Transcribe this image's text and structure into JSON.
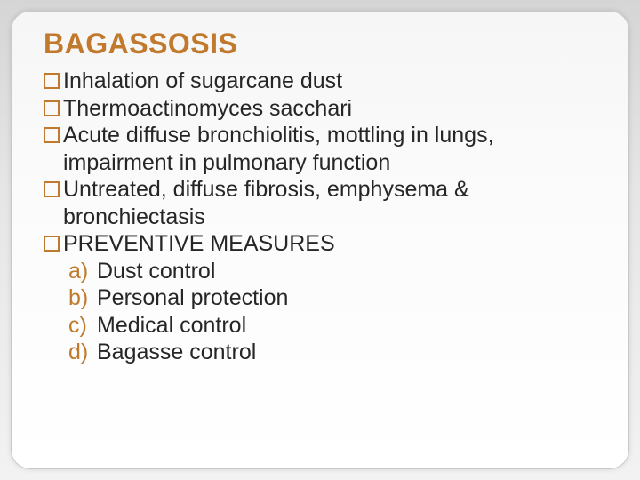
{
  "title": "BAGASSOSIS",
  "title_color": "#c17a2d",
  "title_fontsize": 32,
  "body_color": "#262626",
  "body_fontsize": 25,
  "line_height": 1.22,
  "bullet_color": "#c17a2d",
  "bullet_size": 18,
  "background_outer": "#dcdcdc",
  "background_inner": "#fbfbfb",
  "border_radius": 22,
  "bullets": [
    "Inhalation of sugarcane dust",
    "Thermoactinomyces sacchari",
    "Acute diffuse bronchiolitis, mottling in lungs, impairment in pulmonary function",
    "Untreated, diffuse fibrosis, emphysema & bronchiectasis",
    "PREVENTIVE MEASURES"
  ],
  "lettered_items": [
    {
      "letter": "a)",
      "text": "Dust control"
    },
    {
      "letter": "b)",
      "text": "Personal protection"
    },
    {
      "letter": "c)",
      "text": "Medical control"
    },
    {
      "letter": "d)",
      "text": "Bagasse control"
    }
  ]
}
